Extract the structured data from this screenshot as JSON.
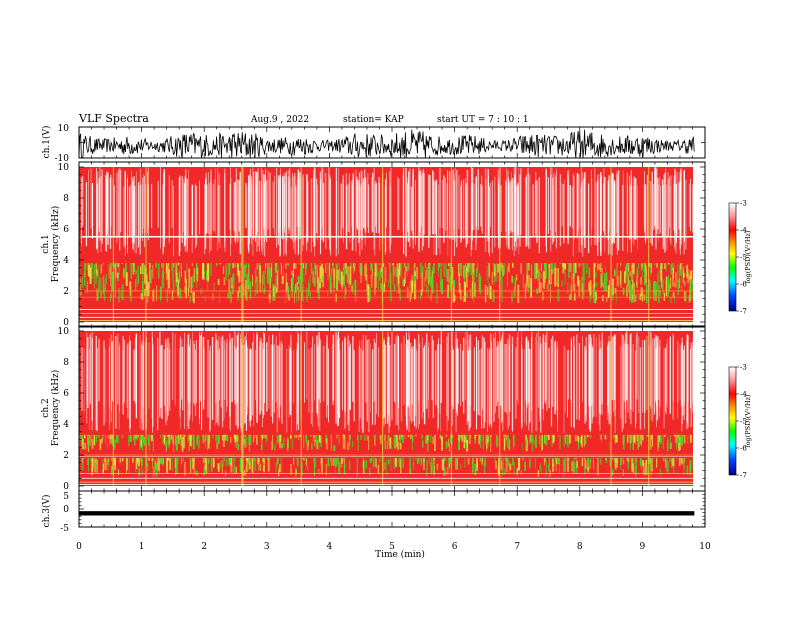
{
  "header": {
    "title": "VLF Spectra",
    "date": "Aug.9  , 2022",
    "station": "station= KAP",
    "start": "start  UT  =   7 : 10 : 1"
  },
  "chart_data": [
    {
      "type": "line",
      "panel": "ch1-waveform",
      "ylabel": "ch.1(V)",
      "ylim": [
        -10,
        10
      ],
      "yticks": [
        "10",
        "-10"
      ],
      "xlim": [
        0,
        10
      ]
    },
    {
      "type": "heatmap",
      "panel": "ch1-spectrogram",
      "ylabel_line1": "ch.1",
      "ylabel_line2": "Frequency  (kHz)",
      "ylim": [
        0,
        10
      ],
      "yticks": [
        "0",
        "2",
        "4",
        "6",
        "8",
        "10"
      ],
      "xlim": [
        0,
        9.83
      ],
      "colorbar": {
        "label": "log(PSD)(V²/Hz)",
        "range": [
          -7,
          -3
        ],
        "ticks": [
          "-3",
          "-4",
          "-5",
          "-6",
          "-7"
        ]
      }
    },
    {
      "type": "heatmap",
      "panel": "ch2-spectrogram",
      "ylabel_line1": "ch.2",
      "ylabel_line2": "Frequency  (kHz)",
      "ylim": [
        0,
        10
      ],
      "yticks": [
        "0",
        "2",
        "4",
        "6",
        "8",
        "10"
      ],
      "xlim": [
        0,
        9.83
      ],
      "colorbar": {
        "label": "log(PSD)(V²/Hz)",
        "range": [
          -7,
          -3
        ],
        "ticks": [
          "-3",
          "-4",
          "-5",
          "-6",
          "-7"
        ]
      }
    },
    {
      "type": "line",
      "panel": "ch3-waveform",
      "ylabel": "ch.3(V)",
      "ylim": [
        -5,
        5
      ],
      "yticks": [
        "5",
        "0",
        "-5"
      ],
      "xlim": [
        0,
        10
      ],
      "xlabel": "Time  (min)",
      "xticks": [
        "0",
        "1",
        "2",
        "3",
        "4",
        "5",
        "6",
        "7",
        "8",
        "9",
        "10"
      ]
    }
  ],
  "colors": {
    "spectrogram_background": "#f02828",
    "band_green": "#44dd22",
    "band_yellow": "#e8e040",
    "trace": "#000000"
  }
}
